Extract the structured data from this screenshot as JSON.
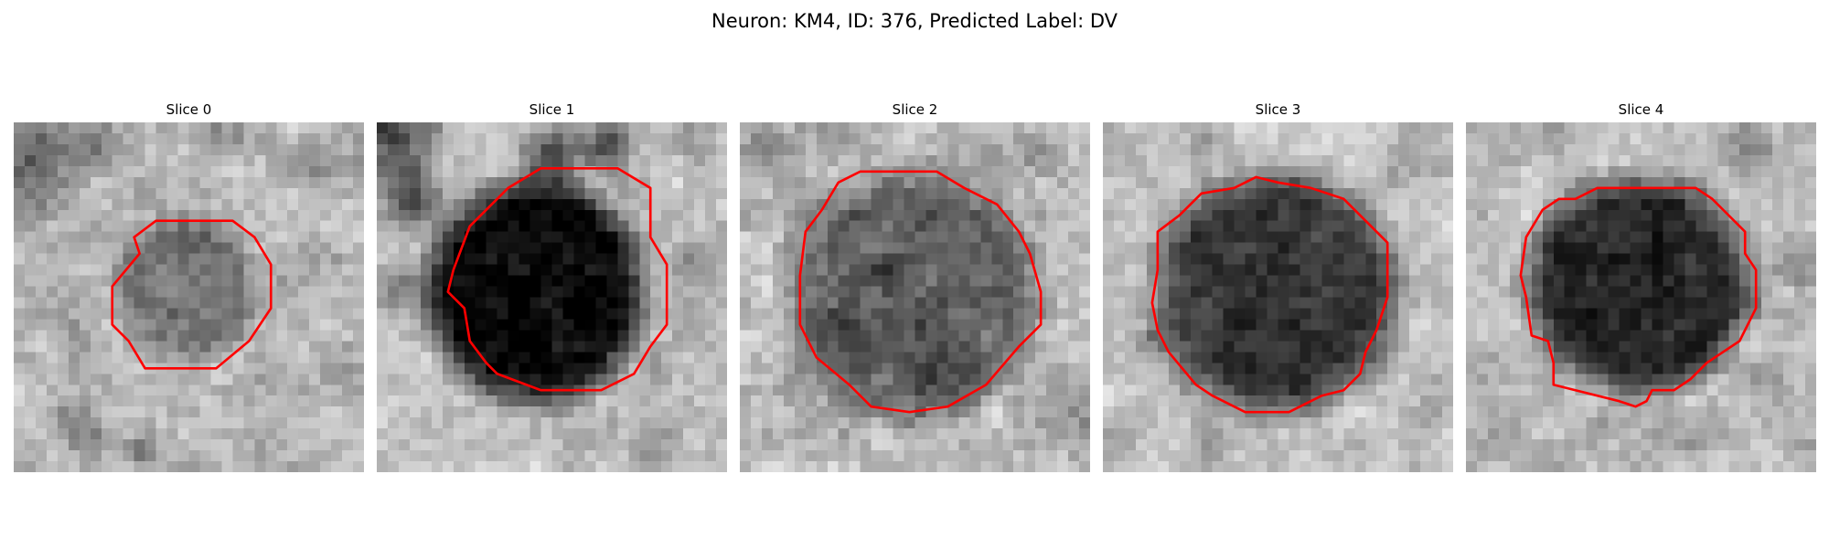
{
  "figure": {
    "title": "Neuron: KM4, ID: 376, Predicted Label: DV"
  },
  "colors": {
    "contour": "#ff0000",
    "background": "#ffffff"
  },
  "panels": [
    {
      "title": "Slice 0",
      "cell_intensity": "medium"
    },
    {
      "title": "Slice 1",
      "cell_intensity": "very dark"
    },
    {
      "title": "Slice 2",
      "cell_intensity": "medium-dark"
    },
    {
      "title": "Slice 3",
      "cell_intensity": "dark"
    },
    {
      "title": "Slice 4",
      "cell_intensity": "dark"
    }
  ]
}
